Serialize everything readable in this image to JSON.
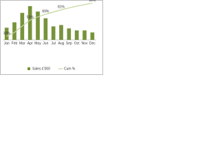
{
  "chart_data": {
    "type": "bar-line",
    "categories": [
      "Jan",
      "Feb",
      "Mar",
      "Apr",
      "May",
      "Jun",
      "Jul",
      "Aug",
      "Sep",
      "Oct",
      "Nov",
      "Dec"
    ],
    "series": [
      {
        "name": "Sales £'000",
        "type": "bar",
        "color": "#77933c",
        "values": [
          18,
          26,
          40,
          50,
          42,
          32,
          20,
          22,
          17,
          14,
          14,
          11
        ]
      },
      {
        "name": "Cum %",
        "type": "line",
        "axis": "y2",
        "color": "#c3d69b",
        "values": [
          10,
          20,
          37,
          53,
          62,
          69,
          75,
          81,
          86,
          91,
          95,
          99
        ],
        "value_labels": [
          "10%",
          null,
          null,
          "53%",
          null,
          "69%",
          null,
          "81%",
          null,
          null,
          null,
          "99%"
        ]
      }
    ],
    "ylim": [
      0,
      55
    ],
    "y2lim": [
      0,
      100
    ],
    "legend": "bottom"
  }
}
